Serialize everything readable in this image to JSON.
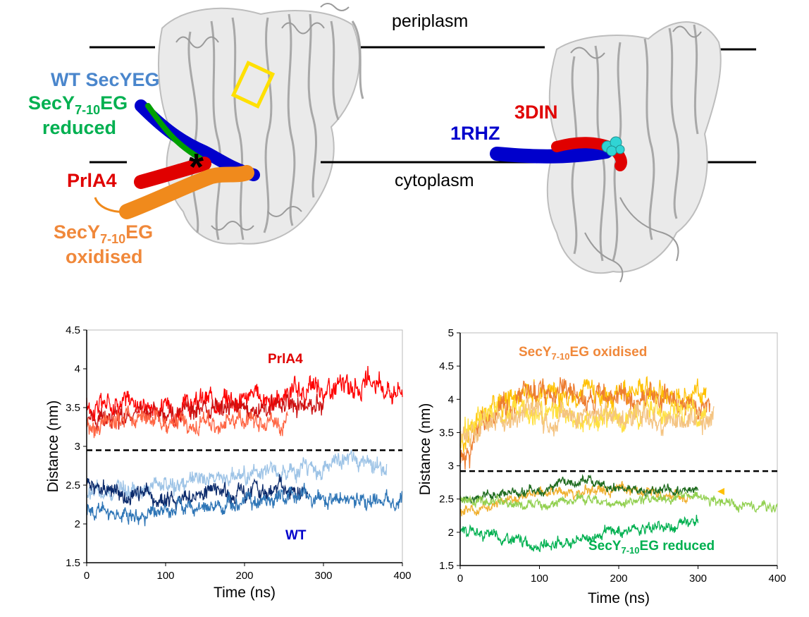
{
  "figure": {
    "structure": {
      "membrane_labels": [
        "periplasm",
        "cytoplasm"
      ],
      "left_labels": {
        "wt": "WT SecYEG",
        "reduced_prefix": "SecY",
        "reduced_sub": "7-10",
        "reduced_suffix": "EG",
        "reduced_word": "reduced",
        "prla4": "PrlA4",
        "oxidised_prefix": "SecY",
        "oxidised_sub": "7-10",
        "oxidised_suffix": "EG",
        "oxidised_word": "oxidised"
      },
      "right_labels": {
        "pdb_a": "1RHZ",
        "pdb_b": "3DIN"
      },
      "star": "*"
    }
  },
  "chart_data": [
    {
      "type": "line",
      "xlabel": "Time (ns)",
      "ylabel": "Distance (nm)",
      "xlim": [
        0,
        400
      ],
      "ylim": [
        1.5,
        4.5
      ],
      "xticks": [
        0,
        100,
        200,
        300,
        400
      ],
      "yticks": [
        1.5,
        2,
        2.5,
        3,
        3.5,
        4,
        4.5
      ],
      "reference_line": 2.95,
      "annotations": [
        "PrlA4",
        "WT"
      ],
      "series": [
        {
          "color": "#ff0000",
          "x_end": 400,
          "base": [
            3.5,
            3.6,
            3.55,
            3.5,
            3.6,
            3.65,
            3.6,
            3.7,
            3.75,
            3.8,
            3.75
          ],
          "noise": 0.14
        },
        {
          "color": "#cc1111",
          "x_end": 300,
          "base": [
            3.3,
            3.4,
            3.45,
            3.4,
            3.5,
            3.5,
            3.45,
            3.55,
            3.5
          ],
          "noise": 0.13
        },
        {
          "color": "#ff6644",
          "x_end": 255,
          "base": [
            3.2,
            3.3,
            3.35,
            3.3,
            3.3,
            3.35,
            3.3
          ],
          "noise": 0.12
        },
        {
          "color": "#9dc3e6",
          "x_end": 380,
          "base": [
            2.4,
            2.45,
            2.5,
            2.5,
            2.55,
            2.6,
            2.65,
            2.7,
            2.75,
            2.8,
            2.75
          ],
          "noise": 0.11
        },
        {
          "color": "#0b2a6b",
          "x_end": 280,
          "base": [
            2.5,
            2.4,
            2.3,
            2.35,
            2.45,
            2.4,
            2.5,
            2.35
          ],
          "noise": 0.11
        },
        {
          "color": "#2e75b6",
          "x_end": 400,
          "base": [
            2.2,
            2.1,
            2.15,
            2.2,
            2.2,
            2.3,
            2.35,
            2.4,
            2.35,
            2.3,
            2.3
          ],
          "noise": 0.1
        }
      ]
    },
    {
      "type": "line",
      "xlabel": "Time (ns)",
      "ylabel": "Distance (nm)",
      "xlim": [
        0,
        400
      ],
      "ylim": [
        1.5,
        5
      ],
      "xticks": [
        0,
        100,
        200,
        300,
        400
      ],
      "yticks": [
        1.5,
        2,
        2.5,
        3,
        3.5,
        4,
        4.5,
        5
      ],
      "reference_line": 2.92,
      "annotations": [
        "SecY7-10EG oxidised",
        "SecY7-10EG reduced"
      ],
      "series": [
        {
          "color": "#ffc000",
          "x_end": 310,
          "base": [
            3.3,
            3.9,
            4.1,
            4.15,
            4.1,
            4.05,
            4.1,
            4.05,
            4.1
          ],
          "noise": 0.18
        },
        {
          "color": "#ed7d31",
          "x_end": 315,
          "base": [
            3.1,
            3.7,
            4.05,
            4.1,
            4.0,
            4.05,
            4.0,
            3.95,
            3.9
          ],
          "noise": 0.18
        },
        {
          "color": "#ffe040",
          "x_end": 310,
          "base": [
            3.4,
            3.8,
            3.9,
            3.7,
            3.65,
            3.7,
            3.75,
            3.8,
            3.85
          ],
          "noise": 0.18
        },
        {
          "color": "#f4c380",
          "x_end": 320,
          "base": [
            3.4,
            3.7,
            3.8,
            3.75,
            3.7,
            3.75,
            3.7,
            3.65,
            3.7
          ],
          "noise": 0.17
        },
        {
          "color": "#f0b030",
          "x_end": 290,
          "base": [
            2.3,
            2.4,
            2.55,
            2.65,
            2.6,
            2.65,
            2.6,
            2.55
          ],
          "noise": 0.08
        },
        {
          "color": "#1e6b1e",
          "x_end": 300,
          "base": [
            2.5,
            2.55,
            2.6,
            2.7,
            2.75,
            2.7,
            2.65,
            2.6,
            2.65
          ],
          "noise": 0.07
        },
        {
          "color": "#92d050",
          "x_end": 400,
          "base": [
            2.5,
            2.45,
            2.4,
            2.45,
            2.5,
            2.45,
            2.5,
            2.55,
            2.45,
            2.4,
            2.38
          ],
          "noise": 0.07
        },
        {
          "color": "#00b050",
          "x_end": 300,
          "base": [
            2.0,
            1.95,
            1.85,
            1.8,
            1.9,
            2.0,
            2.05,
            2.1,
            2.2
          ],
          "noise": 0.08
        }
      ]
    }
  ]
}
